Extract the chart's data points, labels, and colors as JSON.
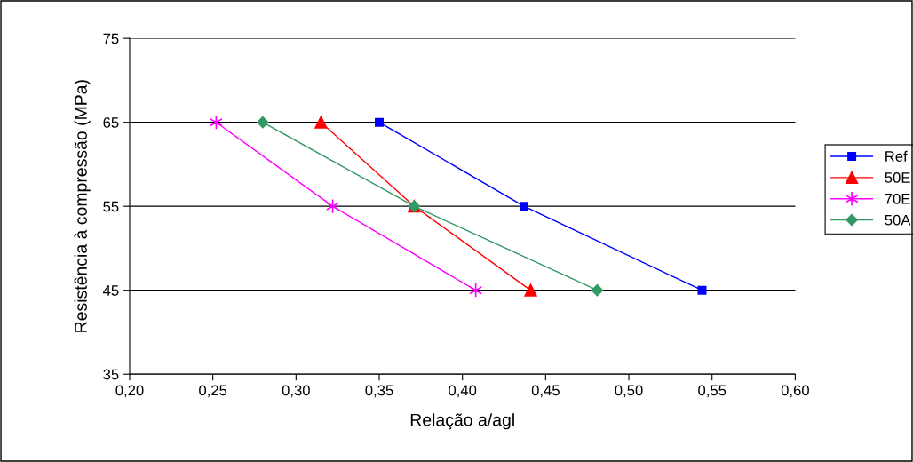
{
  "chart_data": {
    "type": "line",
    "xlabel": "Relação a/agl",
    "ylabel": "Resistência à compressão (MPa)",
    "xlim": [
      0.2,
      0.6
    ],
    "xticks": [
      {
        "value": 0.2,
        "label": "0,20"
      },
      {
        "value": 0.25,
        "label": "0,25"
      },
      {
        "value": 0.3,
        "label": "0,30"
      },
      {
        "value": 0.35,
        "label": "0,35"
      },
      {
        "value": 0.4,
        "label": "0,40"
      },
      {
        "value": 0.45,
        "label": "0,45"
      },
      {
        "value": 0.5,
        "label": "0,50"
      },
      {
        "value": 0.55,
        "label": "0,55"
      },
      {
        "value": 0.6,
        "label": "0,60"
      }
    ],
    "ylim": [
      35,
      75
    ],
    "yticks": [
      35,
      45,
      55,
      65,
      75
    ],
    "grid": "y",
    "legend": "right",
    "line_style": "solid",
    "series": [
      {
        "name": "Ref",
        "color": "#0000ff",
        "marker": "square",
        "x": [
          0.35,
          0.437,
          0.544
        ],
        "values": [
          65,
          55,
          45
        ]
      },
      {
        "name": "50E",
        "color": "#ff0000",
        "marker": "triangle",
        "x": [
          0.315,
          0.371,
          0.441
        ],
        "values": [
          65,
          55,
          45
        ]
      },
      {
        "name": "70E",
        "color": "#ff00ff",
        "marker": "cross",
        "x": [
          0.252,
          0.322,
          0.408
        ],
        "values": [
          65,
          55,
          45
        ]
      },
      {
        "name": "50A",
        "color": "#339966",
        "marker": "diamond",
        "x": [
          0.28,
          0.371,
          0.481
        ],
        "values": [
          65,
          55,
          45
        ]
      }
    ]
  }
}
